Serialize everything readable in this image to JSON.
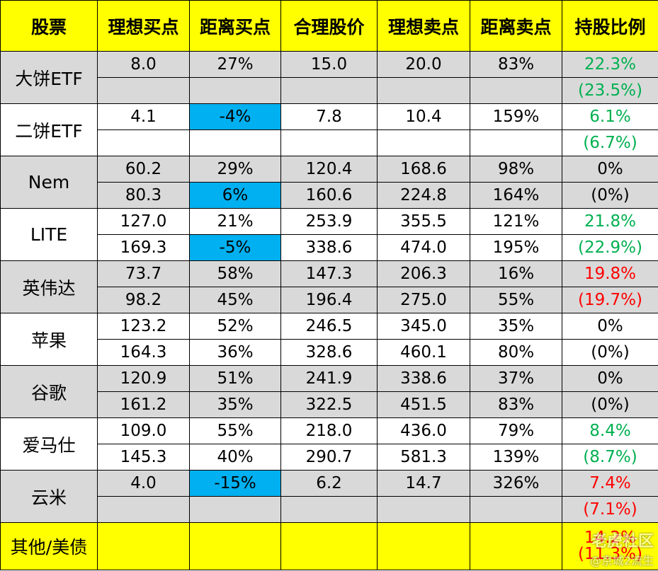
{
  "headers": [
    "股票",
    "理想买点",
    "距离买点",
    "合理股价",
    "理想卖点",
    "距离卖点",
    "持股比例"
  ],
  "stocks": [
    {
      "name": "大饼ETF",
      "bg": "grey",
      "r1": {
        "buy": "8.0",
        "dist_buy": "27%",
        "fair": "15.0",
        "sell": "20.0",
        "dist_sell": "83%",
        "hold": "22.3%"
      },
      "r2": {
        "buy": "",
        "dist_buy": "",
        "fair": "",
        "sell": "",
        "dist_sell": "",
        "hold": "(23.5%)"
      },
      "hold_color": "green"
    },
    {
      "name": "二饼ETF",
      "bg": "white",
      "r1": {
        "buy": "4.1",
        "dist_buy": "-4%",
        "fair": "7.8",
        "sell": "10.4",
        "dist_sell": "159%",
        "hold": "6.1%"
      },
      "r2": {
        "buy": "",
        "dist_buy": "",
        "fair": "",
        "sell": "",
        "dist_sell": "",
        "hold": "(6.7%)"
      },
      "hold_color": "green"
    },
    {
      "name": "Nem",
      "bg": "grey",
      "r1": {
        "buy": "60.2",
        "dist_buy": "29%",
        "fair": "120.4",
        "sell": "168.6",
        "dist_sell": "98%",
        "hold": "0%"
      },
      "r2": {
        "buy": "80.3",
        "dist_buy": "6%",
        "fair": "160.6",
        "sell": "224.8",
        "dist_sell": "164%",
        "hold": "(0%)"
      },
      "hold_color": "black"
    },
    {
      "name": "LITE",
      "bg": "white",
      "r1": {
        "buy": "127.0",
        "dist_buy": "21%",
        "fair": "253.9",
        "sell": "355.5",
        "dist_sell": "121%",
        "hold": "21.8%"
      },
      "r2": {
        "buy": "169.3",
        "dist_buy": "-5%",
        "fair": "338.6",
        "sell": "474.0",
        "dist_sell": "195%",
        "hold": "(22.9%)"
      },
      "hold_color": "green"
    },
    {
      "name": "英伟达",
      "bg": "grey",
      "r1": {
        "buy": "73.7",
        "dist_buy": "58%",
        "fair": "147.3",
        "sell": "206.3",
        "dist_sell": "16%",
        "hold": "19.8%"
      },
      "r2": {
        "buy": "98.2",
        "dist_buy": "45%",
        "fair": "196.4",
        "sell": "275.0",
        "dist_sell": "55%",
        "hold": "(19.7%)"
      },
      "hold_color": "red"
    },
    {
      "name": "苹果",
      "bg": "white",
      "r1": {
        "buy": "123.2",
        "dist_buy": "52%",
        "fair": "246.5",
        "sell": "345.0",
        "dist_sell": "35%",
        "hold": "0%"
      },
      "r2": {
        "buy": "164.3",
        "dist_buy": "36%",
        "fair": "328.6",
        "sell": "460.1",
        "dist_sell": "80%",
        "hold": "(0%)"
      },
      "hold_color": "black"
    },
    {
      "name": "谷歌",
      "bg": "grey",
      "r1": {
        "buy": "120.9",
        "dist_buy": "51%",
        "fair": "241.9",
        "sell": "338.6",
        "dist_sell": "37%",
        "hold": "0%"
      },
      "r2": {
        "buy": "161.2",
        "dist_buy": "35%",
        "fair": "322.5",
        "sell": "451.5",
        "dist_sell": "83%",
        "hold": "(0%)"
      },
      "hold_color": "black"
    },
    {
      "name": "爱马仕",
      "bg": "white",
      "r1": {
        "buy": "109.0",
        "dist_buy": "55%",
        "fair": "218.0",
        "sell": "436.0",
        "dist_sell": "79%",
        "hold": "8.4%"
      },
      "r2": {
        "buy": "145.3",
        "dist_buy": "40%",
        "fair": "290.7",
        "sell": "581.3",
        "dist_sell": "139%",
        "hold": "(8.7%)"
      },
      "hold_color": "green"
    },
    {
      "name": "云米",
      "bg": "grey",
      "r1": {
        "buy": "4.0",
        "dist_buy": "-15%",
        "fair": "6.2",
        "sell": "14.7",
        "dist_sell": "326%",
        "hold": "7.4%"
      },
      "r2": {
        "buy": "",
        "dist_buy": "",
        "fair": "",
        "sell": "",
        "dist_sell": "",
        "hold": "(7.1%)"
      },
      "hold_color": "red"
    }
  ],
  "footer": {
    "name": "其他/美债",
    "hold": "14.2%",
    "hold2": "(11.3%)"
  },
  "watermark": {
    "logo": "老虎社区",
    "user": "@京城2流生"
  },
  "colors": {
    "header_bg": "#ffff00",
    "grey_bg": "#d9d9d9",
    "highlight": "#00b0f0",
    "green": "#00b050",
    "red": "#ff0000"
  }
}
